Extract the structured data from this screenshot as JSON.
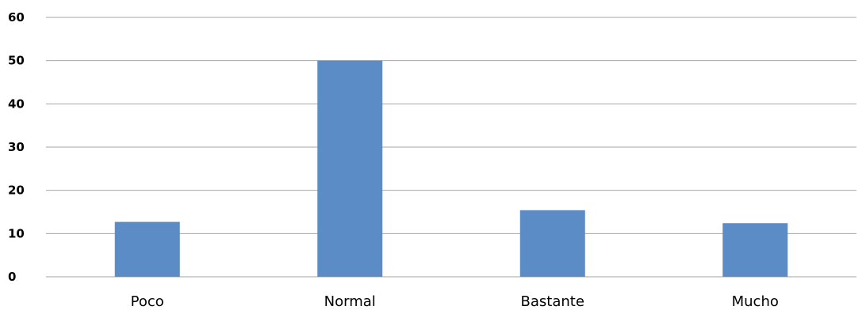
{
  "chart_data": {
    "type": "bar",
    "categories": [
      "Poco",
      "Normal",
      "Bastante",
      "Mucho"
    ],
    "values": [
      12.7,
      50,
      15.4,
      12.4
    ],
    "title": "",
    "xlabel": "",
    "ylabel": "",
    "ylim": [
      0,
      60
    ],
    "yticks": [
      "0",
      "10",
      "20",
      "30",
      "40",
      "50",
      "60"
    ],
    "grid": true,
    "legend": "none",
    "bar_color": "#5b8cc5",
    "grid_color": "#a6a6a6"
  }
}
